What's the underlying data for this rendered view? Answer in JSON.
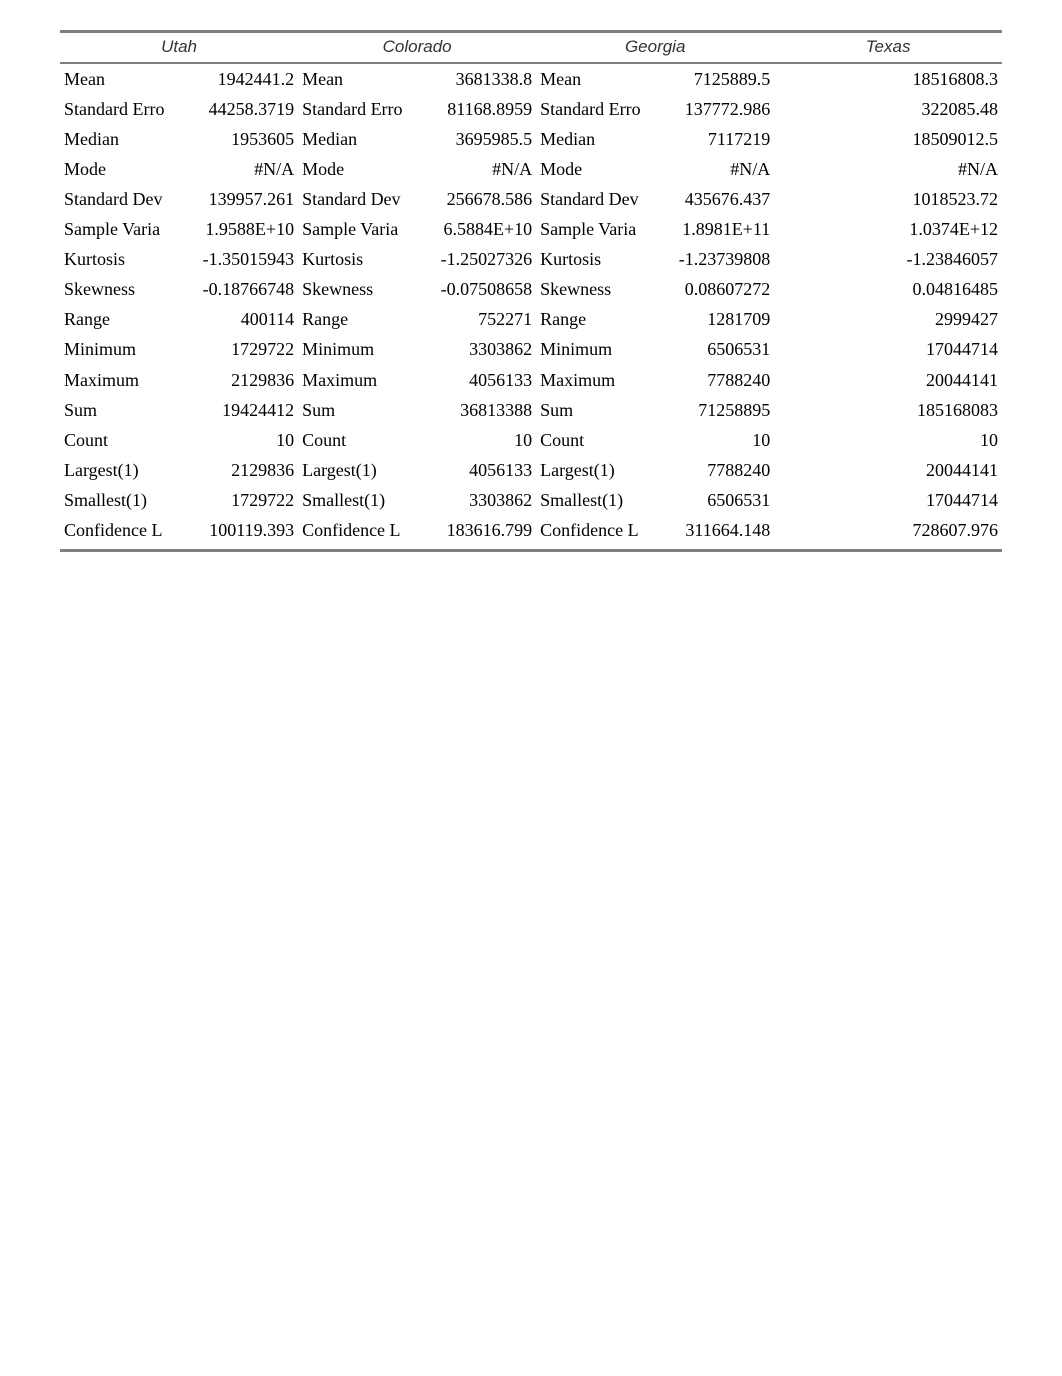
{
  "table": {
    "header_font": "Verdana",
    "header_style": "italic",
    "body_font": "Times New Roman",
    "border_color": "#808080",
    "text_color": "#000000",
    "background_color": "#ffffff",
    "states": [
      "Utah",
      "Colorado",
      "Georgia",
      "Texas"
    ],
    "metrics": [
      "Mean",
      "Standard Erro",
      "Median",
      "Mode",
      "Standard Dev",
      "Sample Varia",
      "Kurtosis",
      "Skewness",
      "Range",
      "Minimum",
      "Maximum",
      "Sum",
      "Count",
      "Largest(1)",
      "Smallest(1)",
      "Confidence L"
    ],
    "values": {
      "Utah": {
        "Mean": "1942441.2",
        "Standard Erro": "44258.3719",
        "Median": "1953605",
        "Mode": "#N/A",
        "Standard Dev": "139957.261",
        "Sample Varia": "1.9588E+10",
        "Kurtosis": "-1.35015943",
        "Skewness": "-0.18766748",
        "Range": "400114",
        "Minimum": "1729722",
        "Maximum": "2129836",
        "Sum": "19424412",
        "Count": "10",
        "Largest(1)": "2129836",
        "Smallest(1)": "1729722",
        "Confidence L": "100119.393"
      },
      "Colorado": {
        "Mean": "3681338.8",
        "Standard Erro": "81168.8959",
        "Median": "3695985.5",
        "Mode": "#N/A",
        "Standard Dev": "256678.586",
        "Sample Varia": "6.5884E+10",
        "Kurtosis": "-1.25027326",
        "Skewness": "-0.07508658",
        "Range": "752271",
        "Minimum": "3303862",
        "Maximum": "4056133",
        "Sum": "36813388",
        "Count": "10",
        "Largest(1)": "4056133",
        "Smallest(1)": "3303862",
        "Confidence L": "183616.799"
      },
      "Georgia": {
        "Mean": "7125889.5",
        "Standard Erro": "137772.986",
        "Median": "7117219",
        "Mode": "#N/A",
        "Standard Dev": "435676.437",
        "Sample Varia": "1.8981E+11",
        "Kurtosis": "-1.23739808",
        "Skewness": "0.08607272",
        "Range": "1281709",
        "Minimum": "6506531",
        "Maximum": "7788240",
        "Sum": "71258895",
        "Count": "10",
        "Largest(1)": "7788240",
        "Smallest(1)": "6506531",
        "Confidence L": "311664.148"
      },
      "Texas": {
        "Mean": "18516808.3",
        "Standard Erro": "322085.48",
        "Median": "18509012.5",
        "Mode": "#N/A",
        "Standard Dev": "1018523.72",
        "Sample Varia": "1.0374E+12",
        "Kurtosis": "-1.23846057",
        "Skewness": "0.04816485",
        "Range": "2999427",
        "Minimum": "17044714",
        "Maximum": "20044141",
        "Sum": "185168083",
        "Count": "10",
        "Largest(1)": "20044141",
        "Smallest(1)": "17044714",
        "Confidence L": "728607.976"
      }
    }
  }
}
